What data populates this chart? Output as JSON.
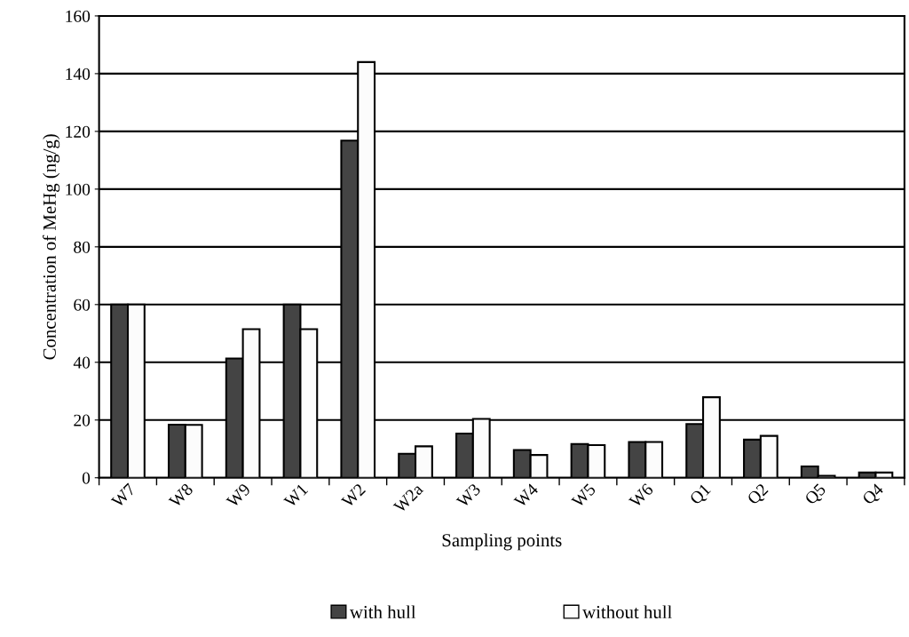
{
  "chart_data": {
    "type": "bar",
    "xlabel": "Sampling points",
    "ylabel": "Concentration of MeHg (ng/g)",
    "categories": [
      "W7",
      "W8",
      "W9",
      "W1",
      "W2",
      "W2a",
      "W3",
      "W4",
      "W5",
      "W6",
      "Q1",
      "Q2",
      "Q5",
      "Q4"
    ],
    "series": [
      {
        "name": "with hull",
        "color": "#444444",
        "values": [
          60,
          18.4,
          41.3,
          60,
          116.8,
          8.3,
          15.3,
          9.6,
          11.7,
          12.4,
          18.6,
          13.2,
          3.9,
          1.8
        ]
      },
      {
        "name": "without hull",
        "color": "#fcfcfc",
        "values": [
          60,
          18.3,
          51.5,
          51.5,
          144,
          10.9,
          20.4,
          7.9,
          11.3,
          12.4,
          27.9,
          14.5,
          0.7,
          1.8
        ]
      }
    ],
    "ylim": [
      0,
      160
    ],
    "yticks": [
      0,
      20,
      40,
      60,
      80,
      100,
      120,
      140,
      160
    ],
    "grid": "y",
    "legend": "bottom"
  }
}
